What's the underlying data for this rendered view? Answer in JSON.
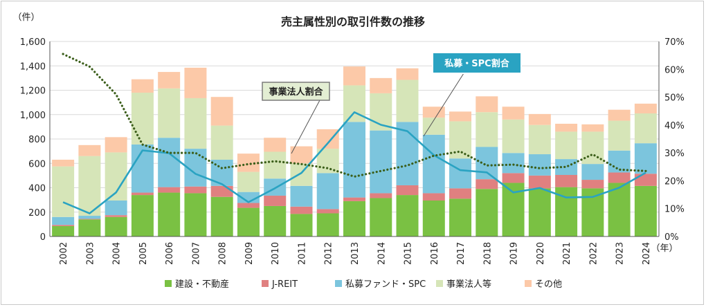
{
  "chart_data": {
    "type": "bar+line",
    "title": "売主属性別の取引件数の推移",
    "y_left_label": "（件）",
    "x_unit_label": "（年）",
    "y_left_range": [
      0,
      1600
    ],
    "y_left_ticks": [
      "0",
      "200",
      "400",
      "600",
      "800",
      "1,000",
      "1,200",
      "1,400",
      "1,600"
    ],
    "y_right_range": [
      0,
      70
    ],
    "y_right_ticks": [
      "0%",
      "10%",
      "20%",
      "30%",
      "40%",
      "50%",
      "60%",
      "70%"
    ],
    "categories": [
      "2002",
      "2003",
      "2004",
      "2005",
      "2006",
      "2007",
      "2008",
      "2009",
      "2010",
      "2011",
      "2012",
      "2013",
      "2014",
      "2015",
      "2016",
      "2017",
      "2018",
      "2019",
      "2020",
      "2021",
      "2022",
      "2023",
      "2024"
    ],
    "bar_series": [
      {
        "name": "建設・不動産",
        "color": "#7ac143",
        "values": [
          85,
          140,
          160,
          340,
          360,
          355,
          325,
          235,
          250,
          185,
          190,
          290,
          315,
          340,
          295,
          310,
          390,
          440,
          395,
          405,
          395,
          440,
          415
        ]
      },
      {
        "name": "J-REIT",
        "color": "#e08080",
        "values": [
          10,
          5,
          15,
          20,
          45,
          55,
          90,
          40,
          85,
          60,
          35,
          30,
          40,
          80,
          60,
          85,
          80,
          80,
          105,
          100,
          70,
          85,
          100
        ]
      },
      {
        "name": "私募ファンド・SPC",
        "color": "#7cc5dd",
        "values": [
          65,
          25,
          120,
          395,
          405,
          310,
          215,
          90,
          140,
          170,
          295,
          620,
          515,
          520,
          480,
          245,
          265,
          165,
          175,
          130,
          130,
          180,
          250
        ]
      },
      {
        "name": "事業法人等",
        "color": "#d6e5b8",
        "values": [
          415,
          490,
          395,
          425,
          405,
          415,
          280,
          165,
          220,
          185,
          200,
          300,
          305,
          345,
          140,
          305,
          285,
          275,
          240,
          225,
          265,
          245,
          245
        ]
      },
      {
        "name": "その他",
        "color": "#fcc9a8",
        "values": [
          55,
          90,
          125,
          110,
          135,
          250,
          235,
          150,
          115,
          140,
          160,
          155,
          125,
          95,
          90,
          80,
          130,
          105,
          90,
          65,
          60,
          90,
          80
        ]
      }
    ],
    "line_series": [
      {
        "name": "私募・SPC割合",
        "color": "#2aa3c2",
        "style": "solid",
        "values": [
          12.3,
          8.3,
          15.8,
          30.9,
          29.9,
          22.5,
          18.8,
          12.3,
          17.3,
          22.8,
          33.5,
          44.6,
          40.1,
          37.8,
          29.2,
          23.8,
          23.0,
          15.8,
          17.4,
          14.0,
          14.2,
          17.5,
          22.9
        ]
      },
      {
        "name": "事業法人割合",
        "color": "#3b5e1a",
        "style": "dotted",
        "values": [
          65.5,
          61.0,
          51.0,
          33.0,
          30.0,
          30.0,
          24.5,
          26.0,
          27.0,
          26.0,
          24.5,
          21.5,
          23.5,
          25.5,
          29.0,
          30.5,
          25.5,
          25.8,
          24.5,
          25.0,
          29.5,
          24.0,
          23.5
        ]
      }
    ],
    "callouts": [
      {
        "text": "事業法人割合",
        "border": "#7a7a7a",
        "fill": "#e3eed3",
        "text_color": "#222222"
      },
      {
        "text": "私募・SPC割合",
        "border": "#2aa3c2",
        "fill": "#2aa3c2",
        "text_color": "#ffffff"
      }
    ]
  }
}
